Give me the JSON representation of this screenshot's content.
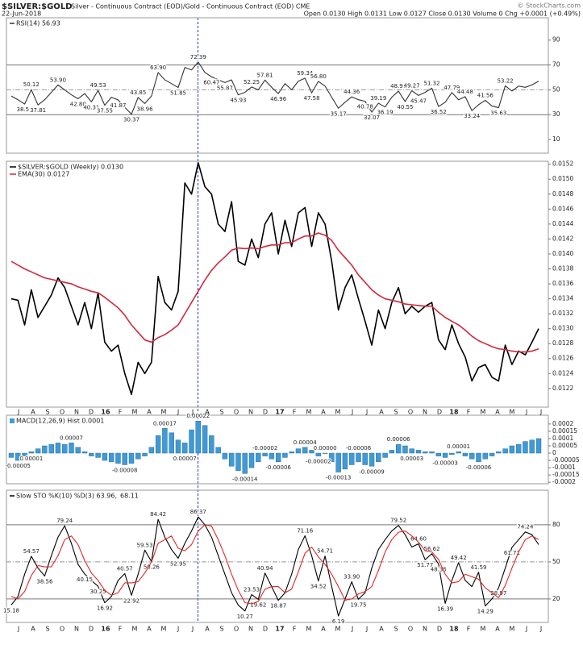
{
  "header": {
    "title": "$SILVER:$GOLD",
    "subtitle": "Silver - Continuous Contract (EOD)/Gold - Continuous Contract (EOD) CME",
    "date": "22-Jun-2018",
    "credit": "© StockCharts.com",
    "quote": "Open 0.0130  High 0.0131  Low 0.0127  Close 0.0130  Volume 0  Chg +0.0001 (+0.49%)"
  },
  "x_labels": [
    "J",
    "A",
    "S",
    "O",
    "N",
    "D",
    "16",
    "F",
    "M",
    "A",
    "M",
    "J",
    "J",
    "A",
    "S",
    "O",
    "N",
    "D",
    "17",
    "F",
    "M",
    "A",
    "M",
    "J",
    "J",
    "A",
    "S",
    "O",
    "N",
    "D",
    "18",
    "F",
    "M",
    "A",
    "M",
    "J",
    "J"
  ],
  "chart_data": [
    {
      "type": "line",
      "ylim": [
        -1,
        108
      ],
      "yticks": [
        90,
        70,
        50,
        30,
        10
      ],
      "hlines": [
        70,
        50,
        30
      ],
      "series": [
        {
          "name": "RSI(14) 56.93",
          "color": "#333333",
          "values": [
            45,
            42,
            38.55,
            50.12,
            37.81,
            42,
            48,
            53.9,
            50,
            46,
            42.8,
            47,
            40.31,
            49.53,
            37.55,
            44,
            41.87,
            36,
            30.37,
            43.85,
            38.96,
            45,
            63.9,
            58,
            55,
            51.85,
            68,
            66,
            72.39,
            64,
            60.47,
            58,
            55.87,
            58,
            45.93,
            48,
            52.25,
            50,
            57.81,
            52,
            46.96,
            55,
            50,
            57,
            59.34,
            47.58,
            56.8,
            53,
            44,
            35.17,
            40,
            44.36,
            42,
            40.78,
            32.07,
            39.19,
            36.19,
            44,
            48.9,
            40.55,
            49.27,
            45.47,
            48,
            51.32,
            36.52,
            40,
            47.79,
            42,
            44.48,
            33.24,
            38,
            41.56,
            37,
            35.63,
            53.22,
            49,
            53,
            52,
            54,
            56.93
          ],
          "value_labels": [
            null,
            null,
            "38.55",
            "50.12",
            "37.81",
            null,
            null,
            "53.90",
            null,
            null,
            "42.80",
            null,
            "40.31",
            "49.53",
            "37.55",
            null,
            "41.87",
            null,
            "30.37",
            "43.85",
            "38.96",
            null,
            "63.90",
            null,
            null,
            "51.85",
            null,
            null,
            "72.39",
            null,
            "60.47",
            null,
            "55.87",
            null,
            "45.93",
            null,
            "52.25",
            null,
            "57.81",
            null,
            "46.96",
            null,
            null,
            null,
            "59.34",
            "47.58",
            "56.80",
            null,
            null,
            "35.17",
            null,
            "44.36",
            null,
            "40.78",
            "32.07",
            "39.19",
            "36.19",
            null,
            "48.90",
            "40.55",
            "49.27",
            "45.47",
            null,
            "51.32",
            "36.52",
            null,
            "47.79",
            null,
            "44.48",
            "33.24",
            null,
            "41.56",
            null,
            "35.63",
            "53.22",
            null,
            null,
            null,
            null,
            null
          ]
        }
      ]
    },
    {
      "type": "line",
      "ylim": [
        0.01195,
        0.01524
      ],
      "yticks": [
        {
          "value": 0.0152,
          "label": "0.0152"
        },
        {
          "value": 0.015,
          "label": "0.0150"
        },
        0.0148,
        0.0146,
        0.0144,
        0.0142,
        {
          "value": 0.014,
          "label": "0.0140"
        },
        0.0138,
        0.0136,
        0.0134,
        0.0132,
        {
          "value": 0.013,
          "label": "0.0130"
        },
        0.0128,
        0.0126,
        0.0124,
        0.0122
      ],
      "series": [
        {
          "name": "$SILVER:$GOLD (Weekly) 0.0130",
          "color": "#000000",
          "values": [
            0.0134,
            0.01338,
            0.01305,
            0.01352,
            0.01315,
            0.0133,
            0.01345,
            0.01368,
            0.01355,
            0.0133,
            0.01305,
            0.01335,
            0.013,
            0.01348,
            0.01282,
            0.0127,
            0.01278,
            0.0124,
            0.01212,
            0.01255,
            0.0124,
            0.01255,
            0.0137,
            0.01335,
            0.01325,
            0.0135,
            0.01495,
            0.0148,
            0.01522,
            0.0149,
            0.0148,
            0.0144,
            0.0143,
            0.0147,
            0.0139,
            0.01385,
            0.0142,
            0.01395,
            0.0144,
            0.01455,
            0.014,
            0.01445,
            0.0141,
            0.01455,
            0.01462,
            0.0141,
            0.01455,
            0.0144,
            0.0139,
            0.01325,
            0.01355,
            0.01372,
            0.0134,
            0.0131,
            0.01278,
            0.01325,
            0.013,
            0.01335,
            0.01355,
            0.0132,
            0.0133,
            0.01322,
            0.0133,
            0.01335,
            0.01285,
            0.01272,
            0.01305,
            0.0128,
            0.01262,
            0.0123,
            0.01248,
            0.01252,
            0.01235,
            0.0123,
            0.01278,
            0.01252,
            0.0127,
            0.01265,
            0.01282,
            0.013
          ]
        },
        {
          "name": "EMA(30) 0.0127",
          "color": "#d02a3c",
          "values": [
            0.0139,
            0.01385,
            0.0138,
            0.01376,
            0.01372,
            0.01368,
            0.01366,
            0.01364,
            0.01362,
            0.0136,
            0.01356,
            0.01353,
            0.0135,
            0.01348,
            0.01342,
            0.01335,
            0.01328,
            0.01318,
            0.01305,
            0.01295,
            0.01285,
            0.01282,
            0.01288,
            0.01292,
            0.01298,
            0.01305,
            0.0132,
            0.01335,
            0.0135,
            0.01365,
            0.01378,
            0.01388,
            0.01396,
            0.01405,
            0.01408,
            0.01407,
            0.01408,
            0.01407,
            0.0141,
            0.01412,
            0.01412,
            0.01415,
            0.01415,
            0.0142,
            0.01424,
            0.01424,
            0.01428,
            0.01425,
            0.01418,
            0.01405,
            0.01395,
            0.01385,
            0.01372,
            0.01362,
            0.01352,
            0.01345,
            0.0134,
            0.01338,
            0.01336,
            0.01333,
            0.01332,
            0.01331,
            0.0133,
            0.0133,
            0.01322,
            0.01315,
            0.0131,
            0.01305,
            0.01298,
            0.0129,
            0.01284,
            0.0128,
            0.01276,
            0.01273,
            0.01272,
            0.0127,
            0.01269,
            0.01269,
            0.0127,
            0.01273
          ]
        }
      ]
    },
    {
      "type": "bar",
      "ylim": [
        -0.00021,
        0.00026
      ],
      "yticks": [
        0.0002,
        0.00015,
        0.0001,
        5e-05,
        0,
        -5e-05,
        -0.0001,
        -0.00015,
        -0.0002
      ],
      "series": [
        {
          "name": "MACD(12,26,9) Hist 0.0001",
          "color": "#3f9ad6",
          "values": [
            -3e-05,
            -5e-05,
            -2e-05,
            1e-05,
            3e-05,
            5e-05,
            6e-05,
            7e-05,
            6e-05,
            7e-05,
            4e-05,
            1e-05,
            -2e-05,
            -3e-05,
            -5e-05,
            -6e-05,
            -7e-05,
            -8e-05,
            -7e-05,
            -4e-05,
            -2e-05,
            4e-05,
            0.00012,
            0.00017,
            0.00014,
            9e-05,
            7e-05,
            0.00016,
            0.00022,
            0.00019,
            0.00012,
            4e-05,
            -4e-05,
            -9e-05,
            -0.00012,
            -0.00014,
            -0.0001,
            -6e-05,
            -2e-05,
            -4e-05,
            -6e-05,
            -3e-05,
            1e-05,
            3e-05,
            4e-05,
            2e-05,
            -2e-05,
            0,
            -6e-05,
            -0.00013,
            -0.00011,
            -8e-05,
            -6e-05,
            -8e-05,
            -9e-05,
            -6e-05,
            -3e-05,
            2e-05,
            6e-05,
            5e-05,
            3e-05,
            2e-05,
            1e-05,
            1e-05,
            -2e-05,
            -3e-05,
            -1e-05,
            1e-05,
            -2e-05,
            -4e-05,
            -6e-05,
            -4e-05,
            -2e-05,
            1e-05,
            3e-05,
            5e-05,
            6e-05,
            8e-05,
            9e-05,
            0.0001
          ],
          "value_labels": [
            null,
            "-0.00005",
            null,
            "0.00001",
            null,
            null,
            null,
            null,
            null,
            "0.00007",
            null,
            null,
            null,
            null,
            null,
            null,
            null,
            "-0.00008",
            null,
            null,
            null,
            null,
            null,
            "0.00017",
            null,
            null,
            "0.00007",
            null,
            "0.00022",
            null,
            null,
            null,
            null,
            null,
            null,
            "-0.00014",
            null,
            null,
            "-0.00002",
            null,
            "-0.00006",
            null,
            null,
            null,
            "0.00004",
            null,
            "-0.00002",
            "0.00000",
            null,
            "-0.00013",
            null,
            null,
            "-0.00006",
            null,
            "-0.00009",
            null,
            null,
            null,
            "0.00006",
            null,
            "0.00003",
            null,
            null,
            null,
            null,
            "-0.00003",
            null,
            "0.00001",
            null,
            null,
            "-0.00006",
            null,
            null,
            null,
            null,
            null,
            null,
            null,
            null,
            null
          ]
        }
      ]
    },
    {
      "type": "line",
      "ylim": [
        1,
        108
      ],
      "yticks": [
        80,
        50,
        20
      ],
      "hlines": [
        80,
        50,
        20
      ],
      "series": [
        {
          "name": "Slow STO %K(10) %D(3) 63.96,",
          "color": "#000000",
          "values": [
            15.18,
            22,
            40,
            54.57,
            45,
            38.56,
            55,
            70,
            79.24,
            65,
            48,
            40.15,
            35,
            30.25,
            16.92,
            22,
            35,
            40.57,
            22.92,
            40,
            59.53,
            50.26,
            84.42,
            70,
            60,
            52.95,
            65,
            75,
            86.37,
            80,
            70,
            55,
            40,
            25,
            15,
            10.27,
            23.53,
            19.62,
            40.94,
            30,
            18.87,
            25,
            40,
            60,
            71.16,
            55,
            34.52,
            54.71,
            30,
            6.19,
            20,
            33.9,
            19.75,
            25,
            45,
            60,
            68,
            75,
            79.52,
            72,
            62,
            64.6,
            51.77,
            56.62,
            48.35,
            16.39,
            35,
            49.42,
            35,
            30,
            41.59,
            14.29,
            20,
            28.97,
            45,
            61.71,
            68,
            74.24,
            72,
            63.96
          ],
          "value_labels": [
            "15.18",
            null,
            null,
            "54.57",
            null,
            "38.56",
            null,
            null,
            "79.24",
            null,
            null,
            "40.15",
            null,
            "30.25",
            "16.92",
            null,
            null,
            "40.57",
            "22.92",
            null,
            "59.53",
            "50.26",
            "84.42",
            null,
            null,
            "52.95",
            null,
            null,
            "86.37",
            null,
            null,
            null,
            null,
            null,
            null,
            "10.27",
            "23.53",
            "19.62",
            "40.94",
            null,
            "18.87",
            null,
            null,
            null,
            "71.16",
            null,
            "34.52",
            "54.71",
            null,
            "6.19",
            null,
            "33.90",
            "19.75",
            null,
            null,
            null,
            null,
            null,
            "79.52",
            null,
            null,
            "64.60",
            "51.77",
            "56.62",
            "48.35",
            "16.39",
            null,
            "49.42",
            null,
            null,
            "41.59",
            "14.29",
            null,
            "28.97",
            null,
            "61.71",
            null,
            "74.24",
            null,
            null
          ]
        },
        {
          "name": "68.11",
          "color": "#e02828",
          "values": [
            22,
            20,
            26,
            39,
            47,
            46,
            46,
            55,
            68,
            71,
            64,
            51,
            41,
            35,
            27,
            23,
            25,
            33,
            33,
            34,
            41,
            50,
            65,
            68,
            71,
            61,
            59,
            64,
            75,
            80,
            79,
            68,
            55,
            40,
            27,
            17,
            16,
            18,
            28,
            30,
            30,
            25,
            28,
            42,
            57,
            62,
            54,
            48,
            40,
            30,
            19,
            20,
            24,
            26,
            30,
            43,
            58,
            68,
            74,
            75,
            71,
            66,
            59,
            58,
            52,
            40,
            33,
            34,
            40,
            38,
            36,
            29,
            25,
            21,
            31,
            45,
            58,
            68,
            71,
            68.11
          ]
        }
      ]
    }
  ]
}
